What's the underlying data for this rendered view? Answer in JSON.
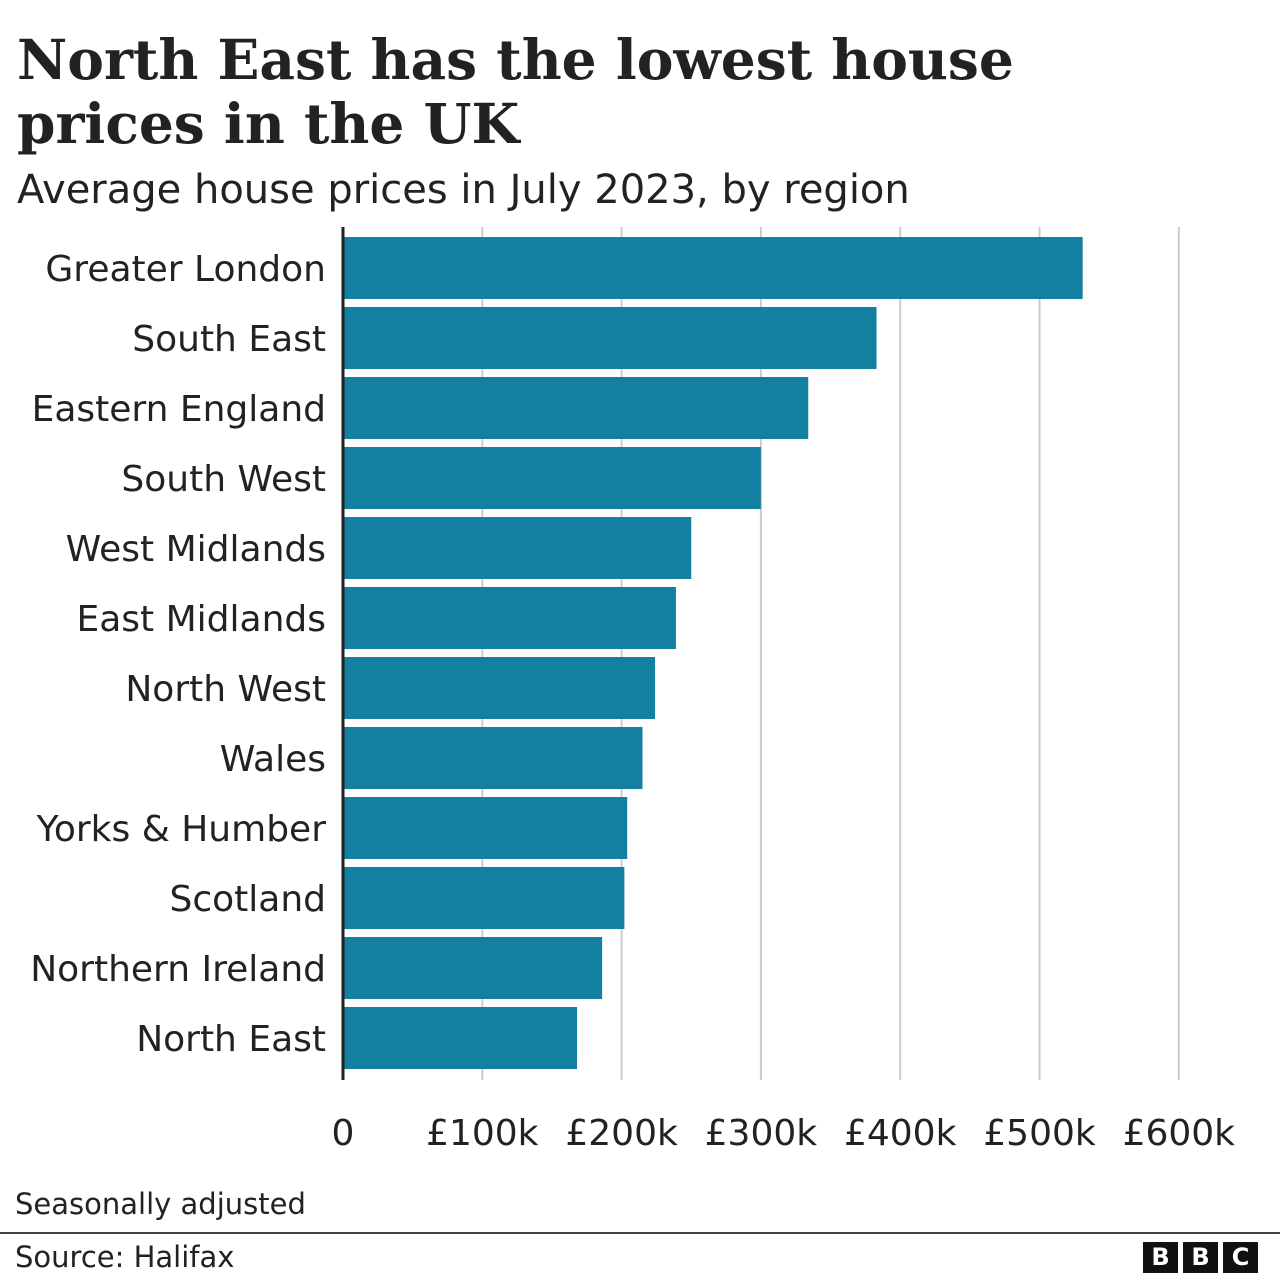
{
  "header": {
    "title": "North East has the lowest house prices in the UK",
    "subtitle": "Average house prices in July 2023, by region"
  },
  "footer": {
    "note": "Seasonally adjusted",
    "source": "Source: Halifax",
    "logo_letters": [
      "B",
      "B",
      "C"
    ]
  },
  "colors": {
    "bar": "#1380A1",
    "grid": "#cccccc",
    "axis": "#222222"
  },
  "chart_data": {
    "type": "bar",
    "orientation": "horizontal",
    "title": "North East has the lowest house prices in the UK",
    "subtitle": "Average house prices in July 2023, by region",
    "xlabel": "",
    "ylabel": "",
    "categories": [
      "Greater London",
      "South East",
      "Eastern England",
      "South West",
      "West Midlands",
      "East Midlands",
      "North West",
      "Wales",
      "Yorks & Humber",
      "Scotland",
      "Northern Ireland",
      "North East"
    ],
    "values": [
      531000,
      383000,
      334000,
      300000,
      250000,
      239000,
      224000,
      215000,
      204000,
      202000,
      186000,
      168000
    ],
    "xlim": [
      0,
      600000
    ],
    "ticks": [
      0,
      100000,
      200000,
      300000,
      400000,
      500000,
      600000
    ],
    "tick_labels": [
      "0",
      "£100k",
      "£200k",
      "£300k",
      "£400k",
      "£500k",
      "£600k"
    ],
    "grid": true
  }
}
